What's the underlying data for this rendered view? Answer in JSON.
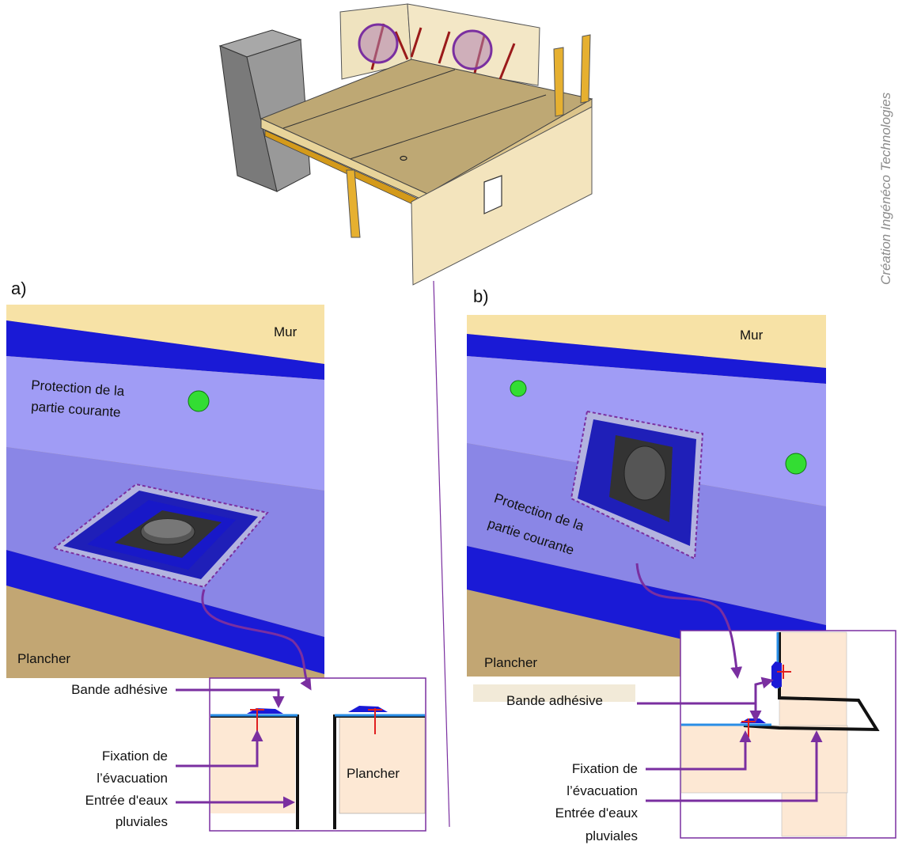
{
  "credit": "Création Ingénéco Technologies",
  "panel_a": {
    "letter": "a)",
    "wall": "Mur",
    "protection_line1": "Protection de la",
    "protection_line2": "partie courante",
    "floor": "Plancher",
    "detail": {
      "tape": "Bande adhésive",
      "fixing_line1": "Fixation de",
      "fixing_line2": "l’évacuation",
      "inlet_line1": "Entrée d'eaux",
      "inlet_line2": "pluviales",
      "floor": "Plancher"
    }
  },
  "panel_b": {
    "letter": "b)",
    "wall": "Mur",
    "protection_line1": "Protection de la",
    "protection_line2": "partie courante",
    "floor": "Plancher",
    "detail": {
      "tape": "Bande adhésive",
      "fixing_line1": "Fixation de",
      "fixing_line2": "l’évacuation",
      "inlet_line1": "Entrée d'eaux",
      "inlet_line2": "pluviales"
    }
  },
  "colors": {
    "wall": "#f7e2a6",
    "membrane_dark": "#1a1ad6",
    "membrane_light": "#a09cf5",
    "membrane_mid": "#8a86e6",
    "floor": "#c2a673",
    "highlight": "#7a2fa0",
    "fixing": "#e02020",
    "green_dot": "#33dd33"
  }
}
